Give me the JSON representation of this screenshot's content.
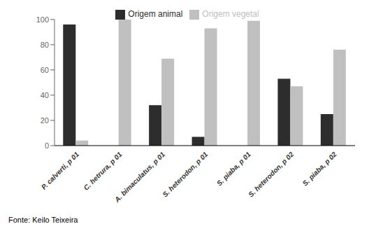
{
  "chart_data": {
    "type": "bar",
    "categories": [
      "P. calverti, p 01",
      "C. hetrura, p 01",
      "A. bimaculatus, p 01",
      "S. heterodon, p 01",
      "S. piaba, p 01",
      "S. heterodon, p 02",
      "S. piaba, p 02"
    ],
    "series": [
      {
        "name": "Origem animal",
        "color": "#2d2d2d",
        "values": [
          96,
          0,
          32,
          7,
          0,
          53,
          25
        ]
      },
      {
        "name": "Origem vegetal",
        "color": "#c0c0c0",
        "values": [
          4,
          100,
          69,
          93,
          99,
          47,
          76
        ]
      }
    ],
    "ylim": [
      0,
      100
    ],
    "yticks": [
      0,
      20,
      40,
      60,
      80,
      100
    ],
    "grid": false,
    "legend": "top",
    "annotations": [
      "Fonte: Keilo Teixeira"
    ]
  }
}
